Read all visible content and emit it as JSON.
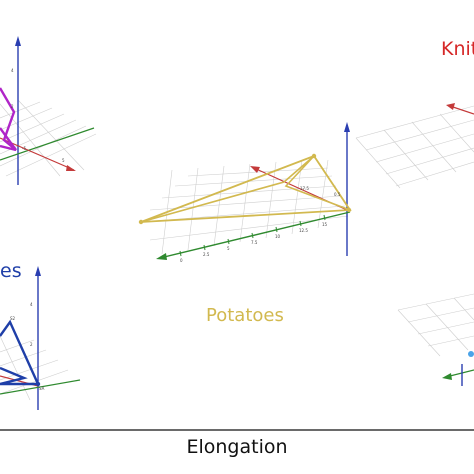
{
  "labels": {
    "top_right": "Knit",
    "left_middle": "es",
    "center": "Potatoes",
    "x_axis": "Elongation"
  },
  "colors": {
    "knit": "#d62828",
    "left_group": "#1f3fa8",
    "potatoes": "#d2b94f",
    "purple_group": "#b025c8",
    "axis_blue": "#2a3eb1",
    "axis_red": "#c43a3a",
    "axis_green": "#2f8a2f",
    "grid": "#c8c8c8"
  },
  "top_left_panel": {
    "tick_labels": [
      "4",
      "2",
      "5",
      "-5"
    ]
  },
  "center_panel": {
    "tick_labels": [
      "0",
      "2.5",
      "5",
      "7.5",
      "10",
      "12.5",
      "15",
      "17.5",
      "0.5"
    ]
  },
  "bottom_left_panel": {
    "tick_labels": [
      "4",
      "2",
      "S2",
      "SA"
    ]
  }
}
